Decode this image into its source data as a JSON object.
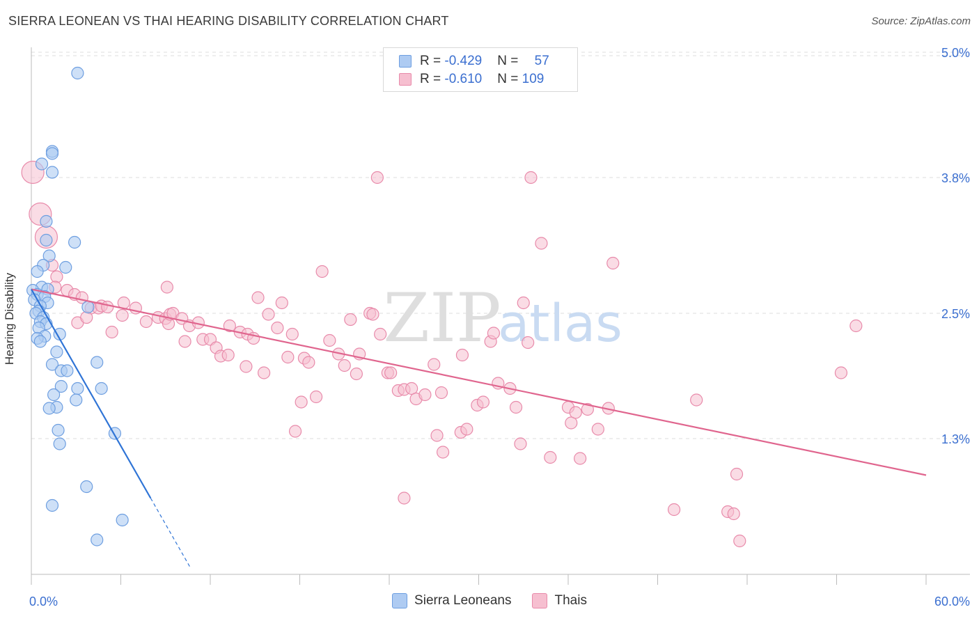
{
  "title": "SIERRA LEONEAN VS THAI HEARING DISABILITY CORRELATION CHART",
  "source": "Source: ZipAtlas.com",
  "watermark": {
    "zip": "ZIP",
    "atlas": "atlas"
  },
  "colors": {
    "blue_fill": "#aecbf2",
    "blue_stroke": "#6d9ee0",
    "blue_line": "#2f74d6",
    "pink_fill": "#f6bfd0",
    "pink_stroke": "#e88aaa",
    "pink_line": "#e0658e",
    "axis_text": "#3b6fd0",
    "grid": "#dddddd"
  },
  "legend": {
    "rows": [
      {
        "r_label": "R = ",
        "r_value": "-0.429",
        "n_label": "N = ",
        "n_value": "57"
      },
      {
        "r_label": "R = ",
        "r_value": "-0.610",
        "n_label": "N = ",
        "n_value": "109"
      }
    ]
  },
  "bottom_legend": {
    "series1": "Sierra Leoneans",
    "series2": "Thais"
  },
  "chart_data": {
    "type": "scatter",
    "title": "SIERRA LEONEAN VS THAI HEARING DISABILITY CORRELATION CHART",
    "xlabel": "",
    "ylabel": "Hearing Disability",
    "xlim": [
      0,
      60
    ],
    "ylim": [
      0,
      5.1
    ],
    "x_tick_labels": [
      "0.0%",
      "60.0%"
    ],
    "y_ticks": [
      1.3,
      2.5,
      3.8,
      5.0
    ],
    "y_tick_labels": [
      "1.3%",
      "2.5%",
      "3.8%",
      "5.0%"
    ],
    "series": [
      {
        "name": "Sierra Leoneans",
        "r": -0.429,
        "n": 57,
        "trend": {
          "x0": 0,
          "y0": 2.73,
          "x1": 8.0,
          "y1": 0.73,
          "dash_to_x": 10.7
        },
        "points": [
          {
            "x": 3.1,
            "y": 4.8
          },
          {
            "x": 1.4,
            "y": 4.05
          },
          {
            "x": 1.4,
            "y": 4.03
          },
          {
            "x": 0.7,
            "y": 3.93
          },
          {
            "x": 1.4,
            "y": 3.85
          },
          {
            "x": 1.0,
            "y": 3.38
          },
          {
            "x": 1.0,
            "y": 3.2
          },
          {
            "x": 2.9,
            "y": 3.18
          },
          {
            "x": 1.2,
            "y": 3.05
          },
          {
            "x": 0.8,
            "y": 2.96
          },
          {
            "x": 2.3,
            "y": 2.94
          },
          {
            "x": 0.4,
            "y": 2.9
          },
          {
            "x": 0.7,
            "y": 2.75
          },
          {
            "x": 1.1,
            "y": 2.73
          },
          {
            "x": 0.1,
            "y": 2.72
          },
          {
            "x": 0.4,
            "y": 2.68
          },
          {
            "x": 0.9,
            "y": 2.66
          },
          {
            "x": 0.2,
            "y": 2.63
          },
          {
            "x": 1.1,
            "y": 2.6
          },
          {
            "x": 0.6,
            "y": 2.57
          },
          {
            "x": 3.8,
            "y": 2.56
          },
          {
            "x": 0.5,
            "y": 2.52
          },
          {
            "x": 0.3,
            "y": 2.5
          },
          {
            "x": 0.8,
            "y": 2.46
          },
          {
            "x": 0.6,
            "y": 2.42
          },
          {
            "x": 1.0,
            "y": 2.4
          },
          {
            "x": 0.5,
            "y": 2.36
          },
          {
            "x": 1.9,
            "y": 2.3
          },
          {
            "x": 0.9,
            "y": 2.28
          },
          {
            "x": 0.4,
            "y": 2.26
          },
          {
            "x": 0.6,
            "y": 2.23
          },
          {
            "x": 1.7,
            "y": 2.13
          },
          {
            "x": 4.4,
            "y": 2.03
          },
          {
            "x": 1.4,
            "y": 2.01
          },
          {
            "x": 2.0,
            "y": 1.95
          },
          {
            "x": 2.4,
            "y": 1.95
          },
          {
            "x": 2.0,
            "y": 1.8
          },
          {
            "x": 3.1,
            "y": 1.78
          },
          {
            "x": 4.7,
            "y": 1.78
          },
          {
            "x": 1.5,
            "y": 1.72
          },
          {
            "x": 3.0,
            "y": 1.67
          },
          {
            "x": 1.7,
            "y": 1.6
          },
          {
            "x": 1.2,
            "y": 1.59
          },
          {
            "x": 1.8,
            "y": 1.38
          },
          {
            "x": 5.6,
            "y": 1.35
          },
          {
            "x": 1.9,
            "y": 1.25
          },
          {
            "x": 3.7,
            "y": 0.84
          },
          {
            "x": 1.4,
            "y": 0.66
          },
          {
            "x": 6.1,
            "y": 0.52
          },
          {
            "x": 4.4,
            "y": 0.33
          }
        ]
      },
      {
        "name": "Thais",
        "r": -0.61,
        "n": 109,
        "trend": {
          "x0": 0,
          "y0": 2.73,
          "x1": 60,
          "y1": 0.95
        },
        "points": [
          {
            "x": 0.1,
            "y": 3.85,
            "big": true
          },
          {
            "x": 0.6,
            "y": 3.45,
            "big": true
          },
          {
            "x": 1.0,
            "y": 3.23,
            "big": true
          },
          {
            "x": 1.4,
            "y": 2.96
          },
          {
            "x": 1.7,
            "y": 2.85
          },
          {
            "x": 1.6,
            "y": 2.75
          },
          {
            "x": 2.4,
            "y": 2.72
          },
          {
            "x": 2.9,
            "y": 2.68
          },
          {
            "x": 3.4,
            "y": 2.65
          },
          {
            "x": 4.0,
            "y": 2.55
          },
          {
            "x": 4.5,
            "y": 2.55
          },
          {
            "x": 4.7,
            "y": 2.57
          },
          {
            "x": 5.1,
            "y": 2.56
          },
          {
            "x": 6.2,
            "y": 2.6
          },
          {
            "x": 7.0,
            "y": 2.55
          },
          {
            "x": 6.1,
            "y": 2.48
          },
          {
            "x": 7.7,
            "y": 2.42
          },
          {
            "x": 8.5,
            "y": 2.46
          },
          {
            "x": 9.0,
            "y": 2.45
          },
          {
            "x": 9.2,
            "y": 2.4
          },
          {
            "x": 3.1,
            "y": 2.41
          },
          {
            "x": 3.7,
            "y": 2.46
          },
          {
            "x": 5.4,
            "y": 2.32
          },
          {
            "x": 9.3,
            "y": 2.49
          },
          {
            "x": 9.5,
            "y": 2.5
          },
          {
            "x": 10.1,
            "y": 2.45
          },
          {
            "x": 10.6,
            "y": 2.38
          },
          {
            "x": 11.2,
            "y": 2.41
          },
          {
            "x": 9.1,
            "y": 2.75
          },
          {
            "x": 10.3,
            "y": 2.23
          },
          {
            "x": 11.5,
            "y": 2.25
          },
          {
            "x": 12.0,
            "y": 2.25
          },
          {
            "x": 12.4,
            "y": 2.17
          },
          {
            "x": 12.7,
            "y": 2.09
          },
          {
            "x": 13.2,
            "y": 2.1
          },
          {
            "x": 13.3,
            "y": 2.38
          },
          {
            "x": 14.0,
            "y": 2.32
          },
          {
            "x": 14.5,
            "y": 2.3
          },
          {
            "x": 14.4,
            "y": 1.99
          },
          {
            "x": 14.9,
            "y": 2.26
          },
          {
            "x": 15.2,
            "y": 2.65
          },
          {
            "x": 15.6,
            "y": 1.93
          },
          {
            "x": 15.9,
            "y": 2.49
          },
          {
            "x": 16.5,
            "y": 2.36
          },
          {
            "x": 16.8,
            "y": 2.6
          },
          {
            "x": 17.2,
            "y": 2.08
          },
          {
            "x": 17.5,
            "y": 2.3
          },
          {
            "x": 17.7,
            "y": 1.37
          },
          {
            "x": 18.3,
            "y": 2.07
          },
          {
            "x": 18.6,
            "y": 2.03
          },
          {
            "x": 19.1,
            "y": 1.7
          },
          {
            "x": 18.1,
            "y": 1.65
          },
          {
            "x": 19.5,
            "y": 2.9
          },
          {
            "x": 20.0,
            "y": 2.24
          },
          {
            "x": 20.6,
            "y": 2.11
          },
          {
            "x": 21.0,
            "y": 2.0
          },
          {
            "x": 21.4,
            "y": 2.44
          },
          {
            "x": 21.8,
            "y": 1.92
          },
          {
            "x": 22.0,
            "y": 2.11
          },
          {
            "x": 22.7,
            "y": 2.5
          },
          {
            "x": 22.9,
            "y": 2.49
          },
          {
            "x": 23.4,
            "y": 2.3
          },
          {
            "x": 23.9,
            "y": 1.93
          },
          {
            "x": 24.1,
            "y": 1.93
          },
          {
            "x": 23.2,
            "y": 3.8
          },
          {
            "x": 24.6,
            "y": 1.76
          },
          {
            "x": 25.0,
            "y": 1.77
          },
          {
            "x": 25.5,
            "y": 1.78
          },
          {
            "x": 25.8,
            "y": 1.68
          },
          {
            "x": 26.4,
            "y": 1.72
          },
          {
            "x": 25.0,
            "y": 0.73
          },
          {
            "x": 27.0,
            "y": 2.01
          },
          {
            "x": 27.5,
            "y": 1.74
          },
          {
            "x": 27.2,
            "y": 1.33
          },
          {
            "x": 27.6,
            "y": 1.17
          },
          {
            "x": 28.9,
            "y": 2.1
          },
          {
            "x": 28.8,
            "y": 1.36
          },
          {
            "x": 29.2,
            "y": 1.39
          },
          {
            "x": 29.9,
            "y": 1.62
          },
          {
            "x": 30.3,
            "y": 1.65
          },
          {
            "x": 30.8,
            "y": 2.23
          },
          {
            "x": 31.0,
            "y": 2.31
          },
          {
            "x": 31.3,
            "y": 1.83
          },
          {
            "x": 32.1,
            "y": 1.78
          },
          {
            "x": 32.5,
            "y": 1.6
          },
          {
            "x": 32.8,
            "y": 1.25
          },
          {
            "x": 33.5,
            "y": 3.8
          },
          {
            "x": 33.0,
            "y": 2.6
          },
          {
            "x": 33.3,
            "y": 2.22
          },
          {
            "x": 34.2,
            "y": 3.17
          },
          {
            "x": 34.8,
            "y": 1.12
          },
          {
            "x": 36.0,
            "y": 1.6
          },
          {
            "x": 36.2,
            "y": 1.45
          },
          {
            "x": 36.5,
            "y": 1.55
          },
          {
            "x": 36.8,
            "y": 1.11
          },
          {
            "x": 37.3,
            "y": 1.58
          },
          {
            "x": 38.0,
            "y": 1.39
          },
          {
            "x": 38.7,
            "y": 1.59
          },
          {
            "x": 39.0,
            "y": 2.98
          },
          {
            "x": 43.1,
            "y": 0.62
          },
          {
            "x": 44.6,
            "y": 1.67
          },
          {
            "x": 46.7,
            "y": 0.6
          },
          {
            "x": 47.1,
            "y": 0.58
          },
          {
            "x": 47.3,
            "y": 0.96
          },
          {
            "x": 47.5,
            "y": 0.32
          },
          {
            "x": 54.3,
            "y": 1.93
          },
          {
            "x": 55.3,
            "y": 2.38
          }
        ]
      }
    ]
  }
}
